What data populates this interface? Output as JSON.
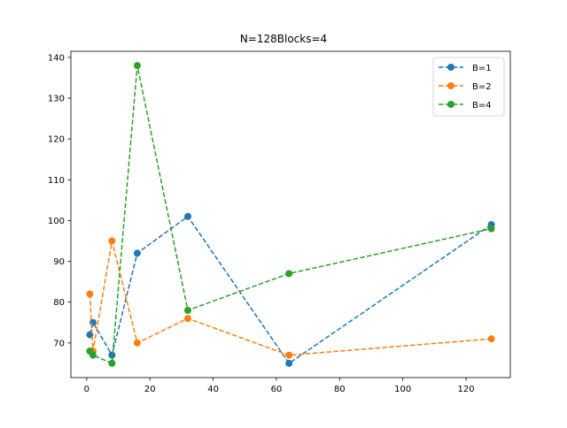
{
  "chart_data": {
    "type": "line",
    "title": "N=128Blocks=4",
    "xlabel": "",
    "ylabel": "",
    "xlim": [
      -5,
      134
    ],
    "ylim": [
      61.5,
      141.5
    ],
    "xticks": [
      0,
      20,
      40,
      60,
      80,
      100,
      120
    ],
    "yticks": [
      70,
      80,
      90,
      100,
      110,
      120,
      130,
      140
    ],
    "grid": false,
    "legend_position": "top-right",
    "line_style": "dashed",
    "marker": "circle",
    "series": [
      {
        "name": "B=1",
        "color": "#1f77b4",
        "x": [
          1,
          2,
          8,
          16,
          32,
          64,
          128
        ],
        "y": [
          72,
          75,
          67,
          92,
          101,
          65,
          99
        ]
      },
      {
        "name": "B=2",
        "color": "#ff7f0e",
        "x": [
          1,
          2,
          8,
          16,
          32,
          64,
          128
        ],
        "y": [
          82,
          68,
          95,
          70,
          76,
          67,
          71
        ]
      },
      {
        "name": "B=4",
        "color": "#2ca02c",
        "x": [
          1,
          2,
          8,
          16,
          32,
          64,
          128
        ],
        "y": [
          68,
          67,
          65,
          138,
          78,
          87,
          98
        ]
      }
    ]
  }
}
